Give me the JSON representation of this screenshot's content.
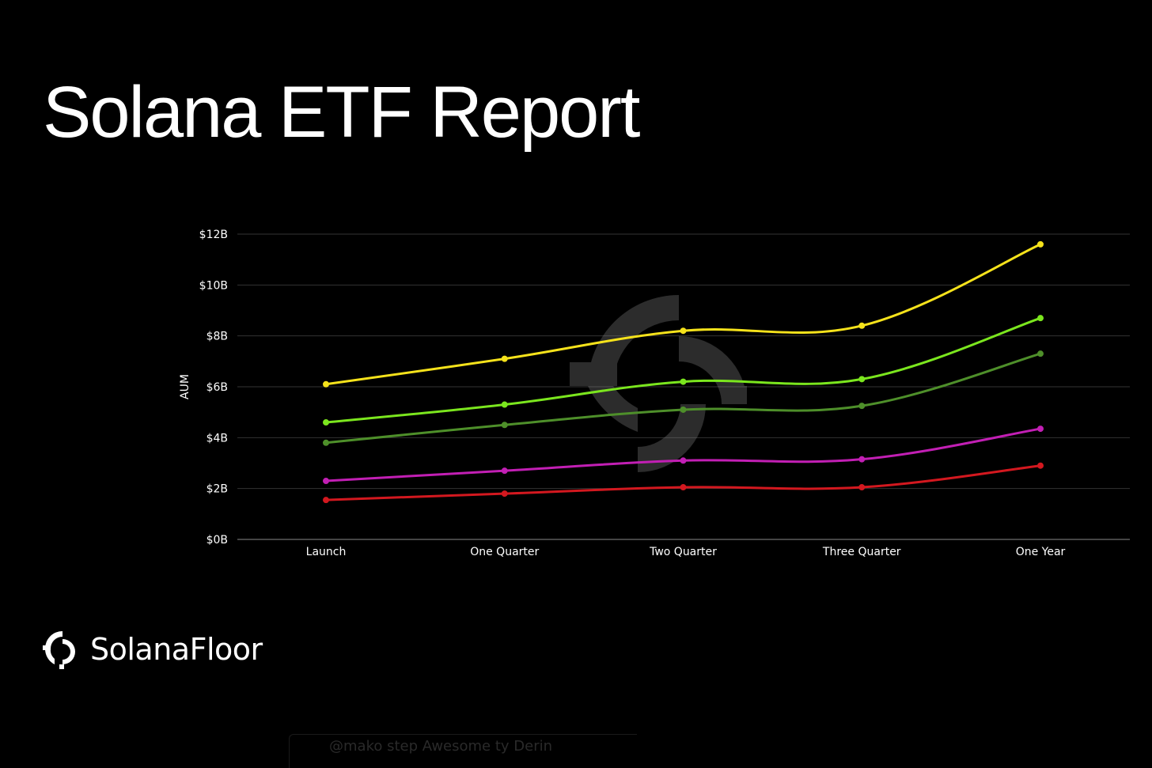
{
  "title": "Solana ETF Report",
  "brand": {
    "name": "SolanaFloor",
    "logo_icon": "solanafloor-logo-icon"
  },
  "footer_fragment": "@mako  step Awesome ty Derin",
  "chart_data": {
    "type": "line",
    "title": "",
    "xlabel": "",
    "ylabel": "AUM",
    "categories": [
      "Launch",
      "One Quarter",
      "Two Quarter",
      "Three Quarter",
      "One Year"
    ],
    "y_ticks": [
      "$0B",
      "$2B",
      "$4B",
      "$6B",
      "$8B",
      "$10B",
      "$12B"
    ],
    "y_tick_values": [
      0,
      2,
      4,
      6,
      8,
      10,
      12
    ],
    "ylim": [
      0,
      12
    ],
    "grid": true,
    "legend": "none",
    "series": [
      {
        "color": "#f5e21b",
        "values": [
          6.1,
          7.1,
          8.2,
          8.4,
          11.6
        ]
      },
      {
        "color": "#7be61e",
        "values": [
          4.6,
          5.3,
          6.2,
          6.3,
          8.7
        ]
      },
      {
        "color": "#4e8f2a",
        "values": [
          3.8,
          4.5,
          5.1,
          5.25,
          7.3
        ]
      },
      {
        "color": "#c21fb4",
        "values": [
          2.3,
          2.7,
          3.1,
          3.15,
          4.35
        ]
      },
      {
        "color": "#d3181f",
        "values": [
          1.55,
          1.8,
          2.05,
          2.05,
          2.9
        ]
      }
    ],
    "watermark_icon": "solanafloor-watermark-icon"
  }
}
